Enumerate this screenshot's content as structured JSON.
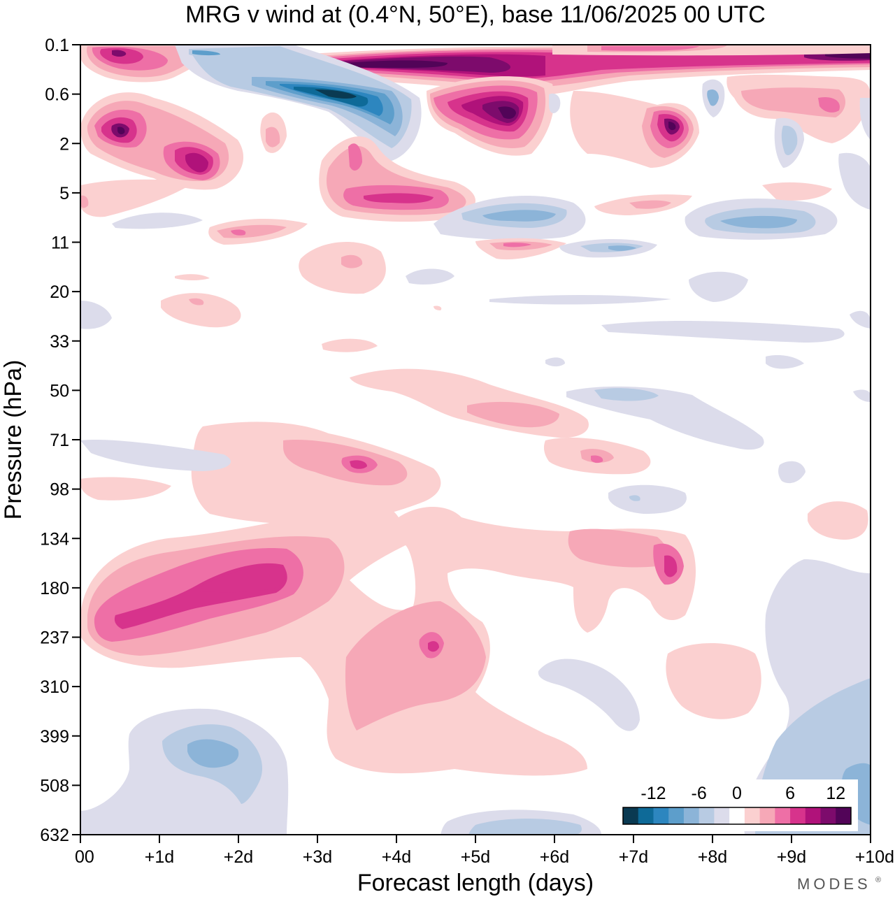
{
  "chart_data": {
    "type": "heatmap",
    "title": "MRG v wind at (0.4°N, 50°E),  base 11/06/2025  00 UTC",
    "xlabel": "Forecast length (days)",
    "ylabel": "Pressure (hPa)",
    "x_ticks": [
      "00",
      "+1d",
      "+2d",
      "+3d",
      "+4d",
      "+5d",
      "+6d",
      "+7d",
      "+8d",
      "+9d",
      "+10d"
    ],
    "y_ticks": [
      "0.1",
      "0.6",
      "2",
      "5",
      "11",
      "20",
      "33",
      "50",
      "71",
      "98",
      "134",
      "180",
      "237",
      "310",
      "399",
      "508",
      "632"
    ],
    "xlim_days": [
      0,
      10
    ],
    "y_scale": "log-pressure, inverted (0.1 hPa at top, 632 hPa at bottom)",
    "colorbar": {
      "tick_labels": [
        "-12",
        "-6",
        "0",
        "6",
        "12"
      ],
      "levels": [
        -14,
        -12,
        -10,
        -8,
        -6,
        -4,
        -2,
        2,
        4,
        6,
        8,
        10,
        12,
        14
      ],
      "colors": [
        "#0a3a52",
        "#0e6a98",
        "#2d86bf",
        "#5d9ecb",
        "#8cb4d8",
        "#b8cbe3",
        "#dcdceb",
        "#ffffff",
        "#fbd0d0",
        "#f6a8b7",
        "#ee6fa6",
        "#d7338c",
        "#b0127a",
        "#7d0b6c",
        "#520458"
      ],
      "location": "lower-right inside plot"
    },
    "features": [
      {
        "name": "strong positive band near 0.1–0.2 hPa",
        "x_days": [
          2.6,
          10
        ],
        "p_hPa": [
          0.1,
          0.3
        ],
        "v": 14
      },
      {
        "name": "negative core near 0.6 hPa",
        "x_days": [
          2.5,
          4.0
        ],
        "p_hPa": [
          0.4,
          1.2
        ],
        "v": -12
      },
      {
        "name": "positive core near 1 hPa",
        "x_days": [
          4.5,
          6.2
        ],
        "p_hPa": [
          0.7,
          1.8
        ],
        "v": 14
      },
      {
        "name": "positive core near 3 hPa",
        "x_days": [
          1.0,
          2.0
        ],
        "p_hPa": [
          2,
          4
        ],
        "v": 12
      },
      {
        "name": "positive patch near 5 hPa",
        "x_days": [
          3.3,
          4.8
        ],
        "p_hPa": [
          4,
          6
        ],
        "v": 8
      },
      {
        "name": "negative patch near 8 hPa",
        "x_days": [
          8.0,
          9.2
        ],
        "p_hPa": [
          6,
          10
        ],
        "v": -6
      },
      {
        "name": "positive band near 200 hPa",
        "x_days": [
          0.3,
          3.5
        ],
        "p_hPa": [
          150,
          280
        ],
        "v": 10
      },
      {
        "name": "positive core near 250 hPa",
        "x_days": [
          3.5,
          5.0
        ],
        "p_hPa": [
          200,
          330
        ],
        "v": 8
      },
      {
        "name": "negative core near 420 hPa",
        "x_days": [
          1.1,
          2.1
        ],
        "p_hPa": [
          350,
          470
        ],
        "v": -6
      }
    ]
  },
  "branding": {
    "logo_text": "MODES",
    "mark": "®"
  }
}
